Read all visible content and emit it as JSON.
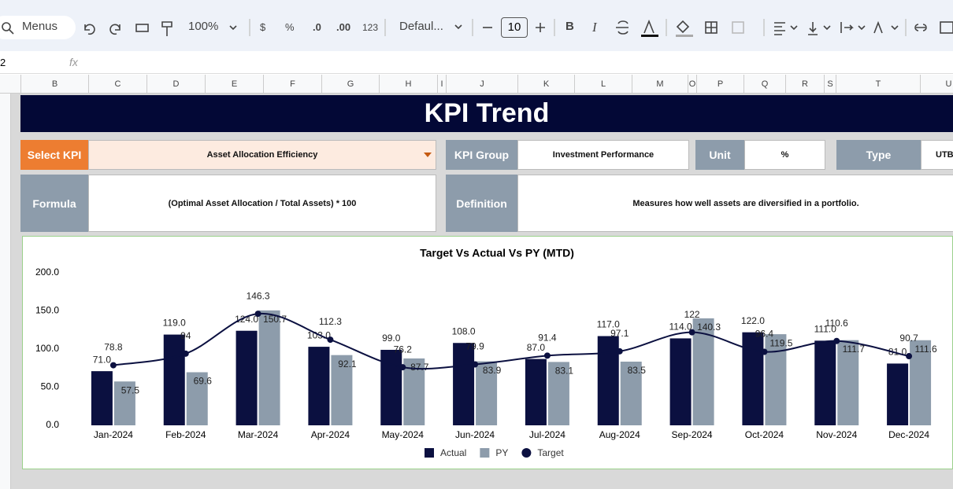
{
  "toolbar": {
    "search": "Menus",
    "zoom": "100%",
    "currency": "$",
    "percent": "%",
    "decrease_decimal": ".0",
    "increase_decimal": ".00",
    "number_format": "123",
    "font": "Defaul...",
    "font_size": "10",
    "bold": "B",
    "italic": "I"
  },
  "formula_bar": {
    "name_box": "2",
    "fx": "fx"
  },
  "columns": [
    "B",
    "C",
    "D",
    "E",
    "F",
    "G",
    "H",
    "I",
    "J",
    "K",
    "L",
    "M",
    "O",
    "P",
    "Q",
    "R",
    "S",
    "T",
    "U"
  ],
  "dashboard": {
    "title": "KPI Trend",
    "select_kpi": {
      "label": "Select KPI",
      "value": "Asset Allocation Efficiency"
    },
    "kpi_group": {
      "label": "KPI Group",
      "value": "Investment Performance"
    },
    "unit": {
      "label": "Unit",
      "value": "%"
    },
    "type": {
      "label": "Type",
      "value": "UTB"
    },
    "formula": {
      "label": "Formula",
      "value": "(Optimal Asset Allocation / Total Assets) * 100"
    },
    "definition": {
      "label": "Definition",
      "value": "Measures how well assets are diversified in a portfolio."
    }
  },
  "chart_data": {
    "type": "bar",
    "title": "Target Vs Actual Vs PY (MTD)",
    "categories": [
      "Jan-2024",
      "Feb-2024",
      "Mar-2024",
      "Apr-2024",
      "May-2024",
      "Jun-2024",
      "Jul-2024",
      "Aug-2024",
      "Sep-2024",
      "Oct-2024",
      "Nov-2024",
      "Dec-2024"
    ],
    "series": [
      {
        "name": "Actual",
        "type": "bar",
        "color": "#0b1040",
        "values": [
          71,
          119,
          124,
          103,
          99,
          108,
          87,
          117,
          114,
          122,
          111,
          81
        ],
        "value_labels": [
          "71.0",
          "119.0",
          "124.0",
          "103.0",
          "99.0",
          "108.0",
          "87.0",
          "117.0",
          "114.0",
          "122.0",
          "111.0",
          "81.0"
        ]
      },
      {
        "name": "PY",
        "type": "bar",
        "color": "#8d9cab",
        "values": [
          57.5,
          69.6,
          150.7,
          92.1,
          87.7,
          83.9,
          83.1,
          83.5,
          140.3,
          119.5,
          111.7,
          111.6
        ]
      },
      {
        "name": "Target",
        "type": "line",
        "color": "#0b1040",
        "values": [
          78.8,
          94,
          146.3,
          112.3,
          76.2,
          79.9,
          91.4,
          97.1,
          122,
          96.4,
          110.6,
          90.7
        ]
      }
    ],
    "ylim": [
      0,
      200
    ],
    "yticks": [
      {
        "value": 0,
        "label": "0.0"
      },
      {
        "value": 50,
        "label": "50.0"
      },
      {
        "value": 100,
        "label": "100.0"
      },
      {
        "value": 150,
        "label": "150.0"
      },
      {
        "value": 200,
        "label": "200.0"
      }
    ],
    "grid": false,
    "legend": "bottom"
  }
}
